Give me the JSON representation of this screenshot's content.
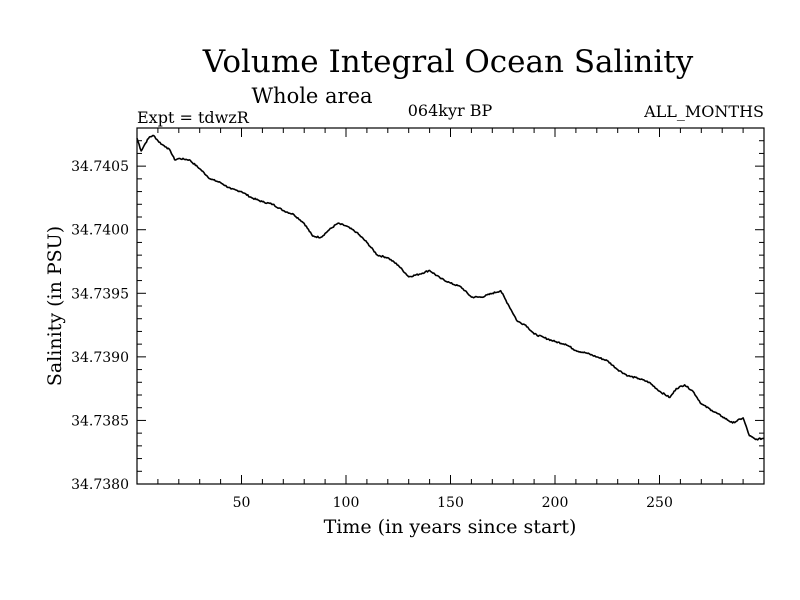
{
  "chart_data": {
    "type": "line",
    "title": "Volume Integral Ocean Salinity",
    "subtitle": "Whole area",
    "experiment": "Expt = tdwzR",
    "period": "064kyr BP",
    "months": "ALL_MONTHS",
    "xlabel": "Time (in years since start)",
    "ylabel": "Salinity (in PSU)",
    "xlim": [
      0,
      300
    ],
    "ylim": [
      34.738,
      34.7408
    ],
    "x_ticks": [
      50,
      100,
      150,
      200,
      250
    ],
    "y_ticks": [
      "34.7380",
      "34.7385",
      "34.7390",
      "34.7395",
      "34.7400",
      "34.7405"
    ],
    "grid": false,
    "series": [
      {
        "x": [
          0,
          2,
          4,
          6,
          8,
          10,
          12,
          14,
          16,
          18,
          20,
          25,
          30,
          35,
          40,
          45,
          50,
          55,
          60,
          65,
          70,
          75,
          80,
          84,
          88,
          92,
          96,
          100,
          105,
          110,
          115,
          120,
          125,
          130,
          135,
          140,
          145,
          150,
          155,
          160,
          165,
          170,
          174,
          178,
          182,
          186,
          190,
          195,
          200,
          205,
          210,
          215,
          220,
          225,
          230,
          235,
          240,
          245,
          250,
          255,
          258,
          262,
          266,
          270,
          275,
          280,
          285,
          290,
          293,
          296,
          300
        ],
        "values": [
          34.74072,
          34.74062,
          34.74068,
          34.74073,
          34.74074,
          34.7407,
          34.74067,
          34.74065,
          34.74062,
          34.74055,
          34.74056,
          34.74055,
          34.74048,
          34.7404,
          34.74037,
          34.74032,
          34.7403,
          34.74025,
          34.74022,
          34.7402,
          34.74015,
          34.74012,
          34.74005,
          34.73995,
          34.73994,
          34.74,
          34.74005,
          34.74003,
          34.73998,
          34.7399,
          34.7398,
          34.73978,
          34.73972,
          34.73963,
          34.73965,
          34.73968,
          34.73962,
          34.73958,
          34.73955,
          34.73947,
          34.73947,
          34.7395,
          34.73952,
          34.7394,
          34.73928,
          34.73925,
          34.73918,
          34.73915,
          34.73912,
          34.7391,
          34.73905,
          34.73903,
          34.739,
          34.73897,
          34.7389,
          34.73885,
          34.73883,
          34.7388,
          34.73873,
          34.73868,
          34.73875,
          34.73878,
          34.73873,
          34.73863,
          34.73858,
          34.73853,
          34.73848,
          34.73852,
          34.73838,
          34.73835,
          34.73836
        ]
      }
    ]
  }
}
